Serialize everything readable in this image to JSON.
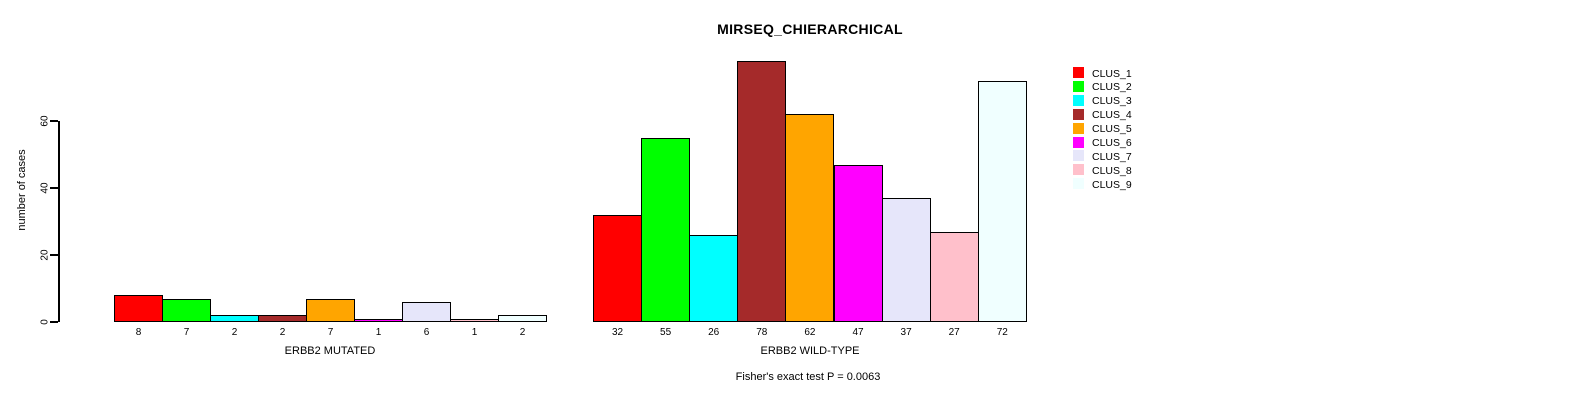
{
  "title": "MIRSEQ_CHIERARCHICAL",
  "y_axis": {
    "label": "number of cases",
    "ticks": [
      0,
      20,
      40,
      60
    ]
  },
  "groups": [
    {
      "label": "ERBB2 MUTATED",
      "values": [
        8,
        7,
        2,
        2,
        7,
        1,
        6,
        1,
        2
      ]
    },
    {
      "label": "ERBB2 WILD-TYPE",
      "values": [
        32,
        55,
        26,
        78,
        62,
        47,
        37,
        27,
        72
      ]
    }
  ],
  "legend": {
    "items": [
      {
        "label": "CLUS_1",
        "color": "#FF0000"
      },
      {
        "label": "CLUS_2",
        "color": "#00FF00"
      },
      {
        "label": "CLUS_3",
        "color": "#00FFFF"
      },
      {
        "label": "CLUS_4",
        "color": "#A52A2A"
      },
      {
        "label": "CLUS_5",
        "color": "#FFA500"
      },
      {
        "label": "CLUS_6",
        "color": "#FF00FF"
      },
      {
        "label": "CLUS_7",
        "color": "#E6E6FA"
      },
      {
        "label": "CLUS_8",
        "color": "#FFC0CB"
      },
      {
        "label": "CLUS_9",
        "color": "#F0FFFF"
      }
    ]
  },
  "footnote": "Fisher's exact test P = 0.0063",
  "chart_data": {
    "type": "bar",
    "title": "MIRSEQ_CHIERARCHICAL",
    "xlabel": "",
    "ylabel": "number of cases",
    "ylim": [
      0,
      79
    ],
    "yticks": [
      0,
      20,
      40,
      60
    ],
    "grid": false,
    "bar_borders": "#000000",
    "bar_value_labels_shown": true,
    "legend_position": "right-top",
    "categories": [
      "ERBB2 MUTATED",
      "ERBB2 WILD-TYPE"
    ],
    "series": [
      {
        "name": "CLUS_1",
        "color": "#FF0000",
        "values": [
          8,
          32
        ]
      },
      {
        "name": "CLUS_2",
        "color": "#00FF00",
        "values": [
          7,
          55
        ]
      },
      {
        "name": "CLUS_3",
        "color": "#00FFFF",
        "values": [
          2,
          26
        ]
      },
      {
        "name": "CLUS_4",
        "color": "#A52A2A",
        "values": [
          2,
          78
        ]
      },
      {
        "name": "CLUS_5",
        "color": "#FFA500",
        "values": [
          7,
          62
        ]
      },
      {
        "name": "CLUS_6",
        "color": "#FF00FF",
        "values": [
          1,
          47
        ]
      },
      {
        "name": "CLUS_7",
        "color": "#E6E6FA",
        "values": [
          6,
          37
        ]
      },
      {
        "name": "CLUS_8",
        "color": "#FFC0CB",
        "values": [
          1,
          27
        ]
      },
      {
        "name": "CLUS_9",
        "color": "#F0FFFF",
        "values": [
          2,
          72
        ]
      }
    ],
    "annotation": "Fisher's exact test P = 0.0063"
  }
}
